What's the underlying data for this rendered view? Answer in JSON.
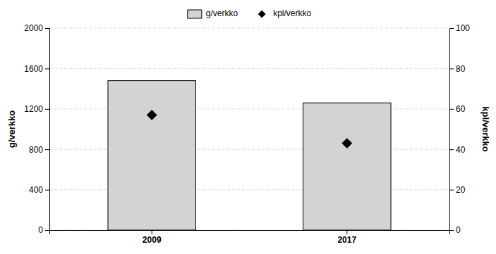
{
  "chart_data": {
    "type": "bar",
    "categories": [
      "2009",
      "2017"
    ],
    "ylabel": "g/verkko",
    "y2label": "kpl/verkko",
    "series": [
      {
        "name": "g/verkko",
        "type": "bar",
        "color": "#d3d3d3",
        "values": [
          1480,
          1260
        ]
      },
      {
        "name": "kpl/verkko",
        "type": "scatter",
        "marker": "diamond",
        "color": "#000000",
        "axis": "y2",
        "values": [
          57,
          43
        ]
      }
    ],
    "ylim": [
      0,
      2000
    ],
    "yticks": [
      0,
      400,
      800,
      1200,
      1600,
      2000
    ],
    "y2lim": [
      0,
      100
    ],
    "y2ticks": [
      0,
      20,
      40,
      60,
      80,
      100
    ],
    "grid": true,
    "legend": "top"
  }
}
